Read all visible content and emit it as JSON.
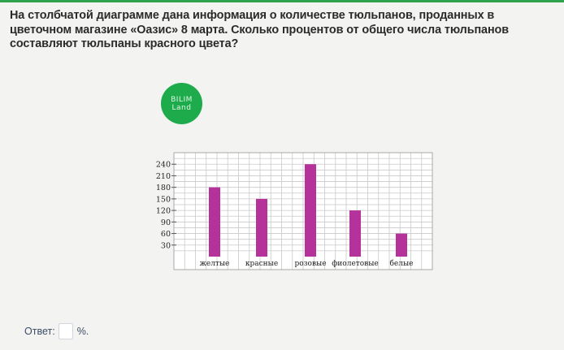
{
  "question": {
    "text": "На столбчатой диаграмме дана информация о количестве тюльпанов, проданных в цветочном магазине «Оазис» 8 марта. Сколько процентов от общего числа тюльпанов составляют тюльпаны красного цвета?"
  },
  "logo": {
    "line1": "BILIM",
    "line2": "Land"
  },
  "chart_data": {
    "type": "bar",
    "categories": [
      "желтые",
      "красные",
      "розовые",
      "фиолетовые",
      "белые"
    ],
    "values": [
      180,
      150,
      240,
      120,
      60
    ],
    "ytick_labels": [
      "30",
      "60",
      "90",
      "120",
      "150",
      "180",
      "210",
      "240"
    ],
    "ylim": [
      0,
      270
    ],
    "grid": true,
    "bar_color": "#b5329a",
    "title": "",
    "xlabel": "",
    "ylabel": ""
  },
  "answer": {
    "label": "Ответ:",
    "value": "",
    "unit": "%."
  }
}
